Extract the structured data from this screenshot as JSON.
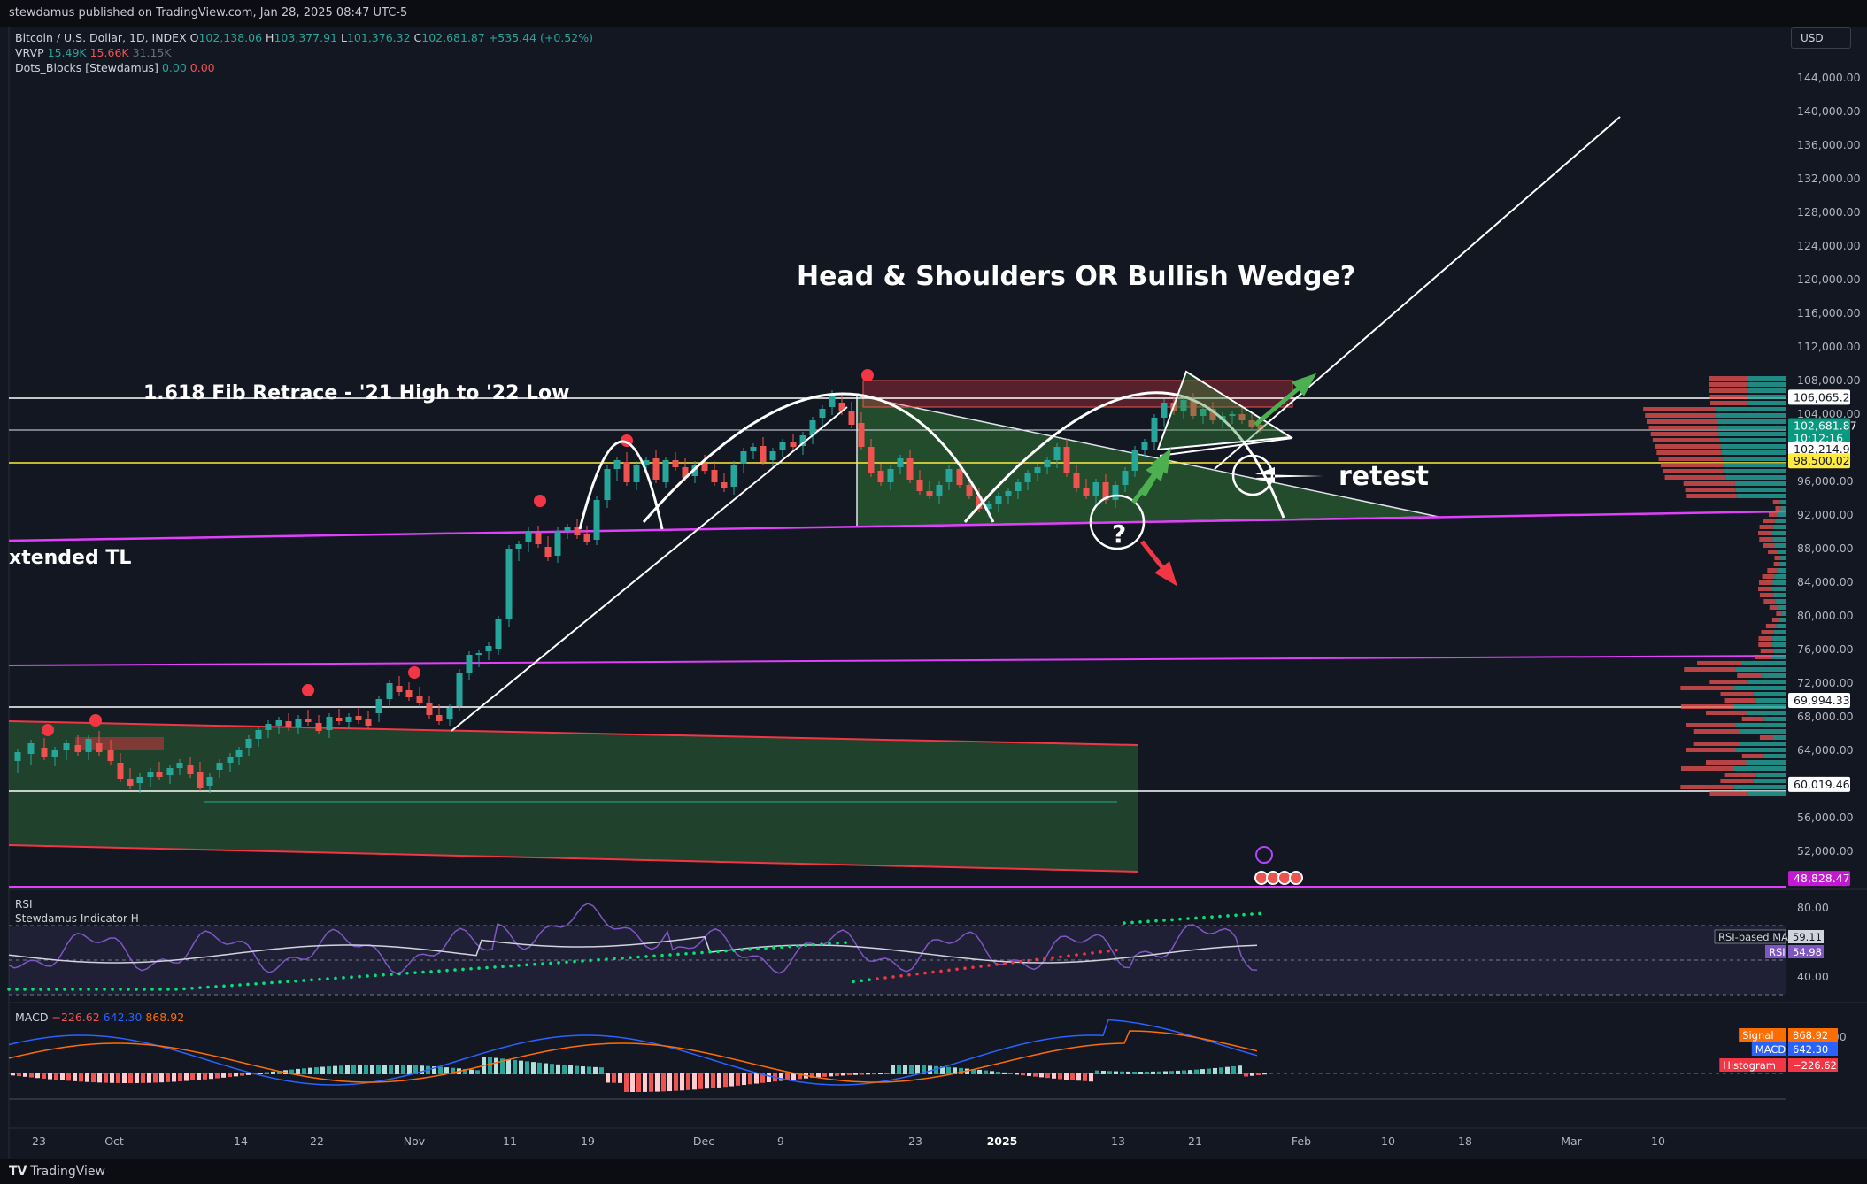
{
  "publish_info": "stewdamus published on TradingView.com, Jan 28, 2025 08:47 UTC-5",
  "brand": "TradingView",
  "currency_button": "USD",
  "legend": {
    "symbol": "Bitcoin / U.S. Dollar, 1D, INDEX",
    "o_label": "O",
    "o": "102,138.06",
    "h_label": "H",
    "h": "103,377.91",
    "l_label": "L",
    "l": "101,376.32",
    "c_label": "C",
    "c": "102,681.87",
    "change": "+535.44 (+0.52%)",
    "vrvp_label": "VRVP",
    "vrvp_1": "15.49K",
    "vrvp_2": "15.66K",
    "vrvp_3": "31.15K",
    "dots_label": "Dots_Blocks [Stewdamus]",
    "dots_1": "0.00",
    "dots_2": "0.00"
  },
  "annotations": {
    "title": "Head & Shoulders OR Bullish Wedge?",
    "fib": "1.618 Fib Retrace - '21 High to '22 Low",
    "extended_tl": "xtended TL",
    "retest": "retest",
    "question": "?"
  },
  "price_axis": {
    "ticks": [
      "144,000.00",
      "140,000.00",
      "136,000.00",
      "132,000.00",
      "128,000.00",
      "124,000.00",
      "120,000.00",
      "116,000.00",
      "112,000.00",
      "108,000.00",
      "104,000.00",
      "96,000.00",
      "92,000.00",
      "88,000.00",
      "84,000.00",
      "80,000.00",
      "76,000.00",
      "72,000.00",
      "68,000.00",
      "64,000.00",
      "56,000.00",
      "52,000.00"
    ],
    "tick_values": [
      144000,
      140000,
      136000,
      132000,
      128000,
      124000,
      120000,
      116000,
      112000,
      108000,
      104000,
      96000,
      92000,
      88000,
      84000,
      80000,
      76000,
      72000,
      68000,
      64000,
      56000,
      52000
    ],
    "badges": [
      {
        "text": "106,065.20",
        "value": 106065.2,
        "bg": "#ffffff",
        "fg": "#131722"
      },
      {
        "text": "102,681.87",
        "value": 102681.87,
        "bg": "#089981",
        "fg": "#ffffff"
      },
      {
        "text": "10:12:16",
        "value": 101200,
        "bg": "#089981",
        "fg": "#ffffff"
      },
      {
        "text": "102,214.98",
        "value": 99900,
        "bg": "#ffffff",
        "fg": "#131722"
      },
      {
        "text": "98,500.02",
        "value": 98500.02,
        "bg": "#ffeb3b",
        "fg": "#131722"
      },
      {
        "text": "69,994.33",
        "value": 69994.33,
        "bg": "#ffffff",
        "fg": "#131722"
      },
      {
        "text": "60,019.46",
        "value": 60019.46,
        "bg": "#ffffff",
        "fg": "#131722"
      },
      {
        "text": "48,828.47",
        "value": 48828.47,
        "bg": "#c418d2",
        "fg": "#ffffff"
      }
    ]
  },
  "time_axis": [
    "23",
    "Oct",
    "14",
    "22",
    "Nov",
    "11",
    "19",
    "Dec",
    "9",
    "23",
    "2025",
    "13",
    "21",
    "Feb",
    "10",
    "18",
    "Mar",
    "10"
  ],
  "rsi": {
    "label": "RSI",
    "indicator": "Stewdamus Indicator H",
    "ticks": [
      "80.00",
      "40.00"
    ],
    "ma_label": "RSI-based MA",
    "ma_value": "59.11",
    "rsi_label": "RSI",
    "rsi_value": "54.98"
  },
  "macd": {
    "label": "MACD",
    "v1": "−226.62",
    "v2": "642.30",
    "v3": "868.92",
    "tick": "2,000.00",
    "signal_label": "Signal",
    "signal_value": "868.92",
    "macd_label": "MACD",
    "macd_value": "642.30",
    "hist_label": "Histogram",
    "hist_value": "−226.62"
  },
  "colors": {
    "background": "#131722",
    "up": "#26a69a",
    "down": "#ef5350",
    "trendline_magenta": "#e040fb",
    "fib_yellow": "#ffeb3b",
    "arrow_green": "#4caf50",
    "arrow_red": "#f23645"
  }
}
